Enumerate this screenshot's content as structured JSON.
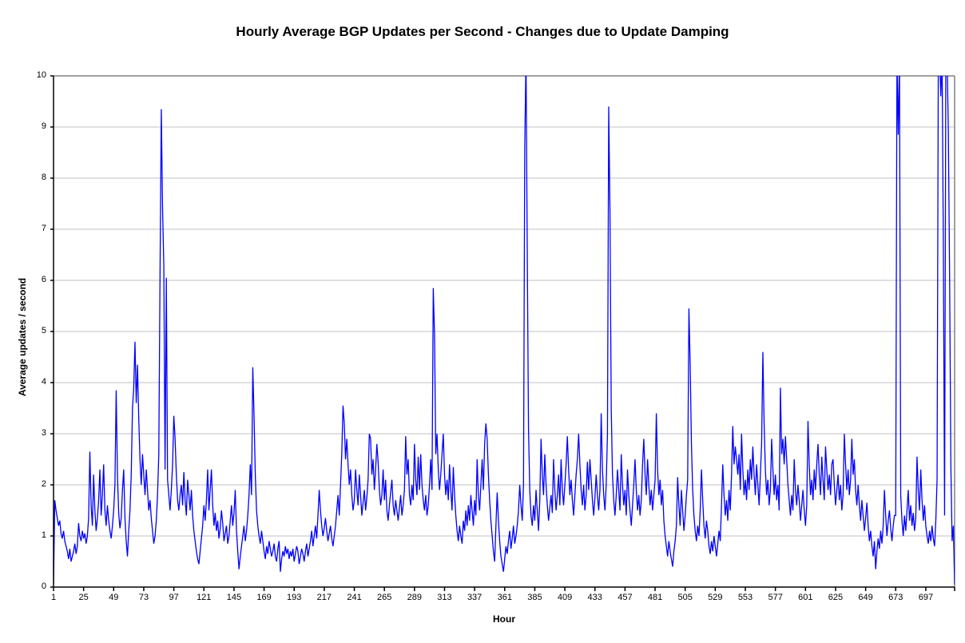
{
  "chart_data": {
    "type": "line",
    "title": "Hourly Average BGP Updates per Second - Changes due to Update Damping",
    "xlabel": "Hour",
    "ylabel": "Average updates / second",
    "legend": "none",
    "grid": "horizontal-only",
    "ylim": [
      0,
      10
    ],
    "y_ticks": [
      0,
      1,
      2,
      3,
      4,
      5,
      6,
      7,
      8,
      9,
      10
    ],
    "x_tick_labels": [
      1,
      25,
      49,
      73,
      97,
      121,
      145,
      169,
      193,
      217,
      241,
      265,
      289,
      313,
      337,
      361,
      385,
      409,
      433,
      457,
      481,
      505,
      529,
      553,
      577,
      601,
      625,
      649,
      673,
      697
    ],
    "x_tick_interval_hours": 24,
    "x_start_hour": 1,
    "x_end_hour": 720,
    "clip_above": 10,
    "colors": {
      "line": "#0000FF",
      "gridline": "#C0C0C0",
      "plot_border": "#808080",
      "axis": "#000000",
      "text": "#000000",
      "background": "#FFFFFF"
    },
    "series": [
      {
        "name": "Hourly average BGP updates per second",
        "color": "#0000FF",
        "values": [
          0.05,
          1.7,
          1.5,
          1.35,
          1.2,
          1.3,
          1.05,
          0.95,
          1.1,
          0.9,
          0.8,
          0.7,
          0.55,
          0.75,
          0.5,
          0.6,
          0.7,
          0.85,
          0.65,
          0.8,
          1.25,
          1.0,
          0.9,
          1.1,
          0.95,
          1.05,
          0.85,
          1.0,
          1.35,
          2.65,
          1.6,
          1.2,
          2.2,
          1.5,
          1.1,
          1.35,
          1.7,
          2.3,
          1.4,
          1.8,
          2.4,
          1.5,
          1.2,
          1.6,
          1.3,
          1.1,
          0.95,
          1.2,
          1.5,
          2.0,
          3.85,
          2.2,
          1.45,
          1.15,
          1.35,
          1.9,
          2.3,
          1.35,
          0.9,
          0.6,
          1.1,
          1.5,
          2.2,
          3.5,
          3.9,
          4.8,
          3.6,
          4.35,
          3.3,
          2.5,
          2.0,
          2.6,
          2.2,
          1.8,
          2.3,
          1.9,
          1.5,
          1.7,
          1.35,
          1.1,
          0.85,
          1.0,
          1.3,
          1.8,
          2.6,
          6.15,
          9.35,
          7.4,
          6.3,
          2.3,
          6.05,
          2.1,
          1.8,
          1.5,
          1.9,
          2.4,
          3.35,
          2.9,
          2.2,
          1.7,
          1.5,
          1.8,
          2.0,
          1.6,
          2.25,
          1.7,
          1.4,
          2.1,
          1.8,
          1.5,
          1.9,
          1.4,
          1.1,
          0.9,
          0.7,
          0.55,
          0.45,
          0.7,
          0.95,
          1.2,
          1.6,
          1.3,
          1.7,
          2.3,
          1.5,
          1.9,
          2.3,
          1.6,
          1.2,
          1.45,
          1.1,
          1.3,
          0.95,
          1.15,
          1.5,
          1.25,
          0.9,
          1.05,
          1.2,
          0.85,
          1.0,
          1.3,
          1.6,
          1.2,
          1.45,
          1.9,
          1.1,
          0.7,
          0.35,
          0.6,
          0.8,
          1.0,
          1.2,
          0.9,
          1.1,
          1.4,
          1.8,
          2.4,
          1.8,
          4.3,
          3.35,
          2.2,
          1.5,
          1.2,
          1.0,
          0.85,
          1.1,
          0.9,
          0.7,
          0.55,
          0.8,
          0.65,
          0.9,
          0.75,
          0.6,
          0.7,
          0.85,
          0.6,
          0.5,
          0.75,
          0.9,
          0.3,
          0.55,
          0.7,
          0.6,
          0.8,
          0.65,
          0.75,
          0.55,
          0.7,
          0.6,
          0.75,
          0.5,
          0.65,
          0.8,
          0.7,
          0.45,
          0.6,
          0.75,
          0.65,
          0.5,
          0.7,
          0.85,
          0.6,
          0.75,
          0.9,
          1.1,
          0.8,
          1.0,
          1.2,
          0.95,
          1.4,
          1.9,
          1.5,
          1.2,
          1.0,
          1.15,
          1.35,
          1.1,
          0.9,
          1.05,
          1.2,
          0.95,
          0.8,
          1.0,
          1.2,
          1.5,
          1.8,
          1.4,
          2.0,
          2.6,
          3.55,
          3.2,
          2.5,
          2.9,
          2.4,
          2.0,
          2.3,
          1.8,
          1.5,
          1.7,
          2.3,
          1.9,
          1.6,
          2.2,
          1.8,
          1.4,
          1.65,
          1.9,
          1.5,
          1.75,
          2.1,
          3.0,
          2.9,
          2.2,
          2.5,
          1.9,
          2.3,
          2.8,
          2.45,
          1.9,
          1.6,
          1.8,
          2.3,
          1.7,
          2.1,
          1.5,
          1.3,
          1.6,
          1.85,
          2.1,
          1.6,
          1.4,
          1.7,
          1.5,
          1.3,
          1.55,
          1.8,
          1.4,
          1.6,
          1.9,
          2.95,
          2.2,
          2.5,
          1.8,
          1.6,
          2.0,
          1.7,
          2.8,
          2.1,
          1.8,
          2.55,
          1.9,
          2.6,
          2.0,
          1.7,
          1.5,
          1.8,
          1.4,
          1.6,
          2.0,
          2.5,
          1.9,
          5.85,
          4.95,
          2.6,
          3.0,
          2.3,
          1.9,
          2.2,
          2.6,
          3.0,
          2.2,
          1.8,
          2.1,
          1.7,
          2.4,
          1.9,
          1.5,
          2.35,
          1.8,
          1.4,
          1.1,
          0.9,
          1.2,
          1.0,
          0.85,
          1.3,
          1.1,
          1.5,
          1.2,
          1.6,
          1.3,
          1.8,
          1.5,
          1.2,
          1.7,
          1.4,
          2.5,
          1.8,
          1.5,
          2.0,
          2.5,
          1.9,
          2.8,
          3.2,
          2.9,
          2.2,
          1.7,
          1.3,
          1.0,
          0.7,
          0.5,
          1.2,
          1.85,
          1.3,
          0.9,
          0.6,
          0.45,
          0.3,
          0.55,
          0.8,
          0.65,
          0.9,
          1.1,
          0.75,
          0.95,
          1.2,
          0.85,
          1.0,
          1.2,
          1.5,
          2.0,
          1.6,
          1.3,
          2.0,
          8.6,
          10.4,
          6.6,
          3.1,
          1.9,
          1.4,
          1.2,
          1.6,
          1.3,
          1.9,
          1.5,
          1.1,
          1.7,
          2.9,
          2.2,
          1.8,
          2.6,
          2.0,
          1.6,
          1.3,
          1.55,
          1.8,
          1.45,
          2.5,
          1.9,
          1.5,
          1.8,
          2.2,
          1.6,
          2.5,
          1.9,
          1.6,
          2.0,
          2.4,
          2.95,
          2.3,
          1.8,
          2.1,
          1.7,
          1.4,
          1.8,
          2.2,
          2.5,
          3.0,
          2.4,
          1.9,
          1.6,
          2.0,
          1.5,
          1.8,
          2.45,
          1.9,
          2.5,
          2.1,
          1.7,
          1.4,
          1.75,
          2.2,
          1.8,
          1.5,
          1.9,
          3.4,
          2.3,
          1.8,
          1.5,
          2.0,
          3.0,
          9.4,
          7.35,
          3.5,
          2.2,
          1.7,
          1.4,
          1.8,
          2.3,
          1.9,
          1.5,
          2.6,
          2.0,
          1.6,
          1.9,
          1.4,
          2.3,
          1.8,
          1.5,
          1.2,
          1.6,
          2.0,
          2.5,
          1.9,
          1.5,
          1.8,
          1.4,
          1.7,
          2.4,
          2.9,
          2.2,
          1.8,
          2.5,
          2.0,
          1.6,
          1.9,
          1.5,
          1.8,
          2.1,
          3.4,
          2.3,
          1.8,
          2.1,
          1.6,
          1.9,
          1.3,
          1.0,
          0.8,
          0.6,
          0.9,
          0.7,
          0.55,
          0.4,
          0.7,
          0.9,
          1.2,
          2.15,
          1.6,
          1.2,
          1.9,
          1.5,
          1.1,
          1.4,
          1.8,
          2.1,
          5.45,
          4.35,
          2.8,
          1.9,
          1.4,
          1.1,
          0.9,
          1.2,
          1.0,
          1.5,
          2.3,
          1.7,
          1.2,
          0.95,
          1.3,
          1.1,
          0.8,
          0.65,
          0.9,
          0.7,
          1.0,
          0.8,
          0.6,
          0.85,
          1.1,
          0.9,
          1.6,
          2.4,
          1.8,
          1.4,
          1.7,
          1.3,
          1.9,
          1.5,
          2.2,
          3.15,
          2.4,
          2.75,
          2.5,
          2.2,
          2.6,
          1.9,
          3.0,
          2.3,
          1.8,
          2.1,
          1.7,
          2.3,
          1.9,
          2.5,
          2.1,
          2.75,
          2.2,
          1.8,
          2.4,
          2.0,
          1.6,
          2.2,
          2.8,
          4.6,
          3.2,
          2.3,
          1.8,
          2.1,
          1.6,
          1.9,
          2.9,
          2.3,
          1.8,
          2.2,
          1.7,
          2.0,
          1.5,
          3.9,
          2.6,
          2.9,
          2.4,
          2.95,
          2.5,
          2.0,
          1.7,
          1.4,
          1.8,
          1.5,
          2.5,
          1.9,
          1.6,
          2.0,
          1.7,
          1.3,
          1.6,
          1.9,
          1.5,
          1.2,
          1.6,
          3.25,
          2.4,
          1.8,
          2.1,
          1.7,
          2.3,
          1.9,
          2.4,
          2.8,
          2.2,
          1.8,
          2.55,
          2.1,
          1.7,
          2.75,
          2.3,
          1.9,
          2.2,
          1.8,
          2.4,
          2.5,
          2.0,
          1.6,
          1.9,
          2.2,
          1.7,
          2.0,
          1.5,
          1.8,
          3.0,
          2.4,
          1.9,
          2.3,
          1.8,
          2.1,
          2.9,
          2.2,
          2.5,
          1.9,
          1.6,
          2.0,
          1.6,
          1.3,
          1.7,
          1.4,
          1.1,
          1.35,
          1.65,
          1.2,
          0.9,
          1.1,
          0.8,
          0.6,
          0.9,
          0.35,
          0.7,
          0.95,
          0.75,
          1.1,
          0.85,
          1.2,
          1.9,
          1.4,
          1.0,
          1.3,
          1.5,
          1.15,
          0.9,
          1.2,
          1.4,
          1.4,
          10.4,
          8.85,
          10.4,
          1.8,
          1.3,
          1.0,
          1.4,
          1.1,
          1.5,
          1.9,
          1.3,
          1.6,
          1.2,
          1.45,
          1.1,
          1.35,
          2.55,
          1.9,
          1.5,
          2.3,
          1.7,
          1.3,
          1.6,
          1.2,
          1.0,
          0.85,
          1.1,
          0.9,
          1.2,
          0.95,
          0.8,
          1.3,
          2.1,
          10.4,
          10.4,
          9.6,
          10.4,
          6.7,
          1.4,
          10.4,
          10.4,
          8.9,
          6.1,
          2.4,
          0.9,
          1.2,
          0.05
        ]
      }
    ]
  }
}
